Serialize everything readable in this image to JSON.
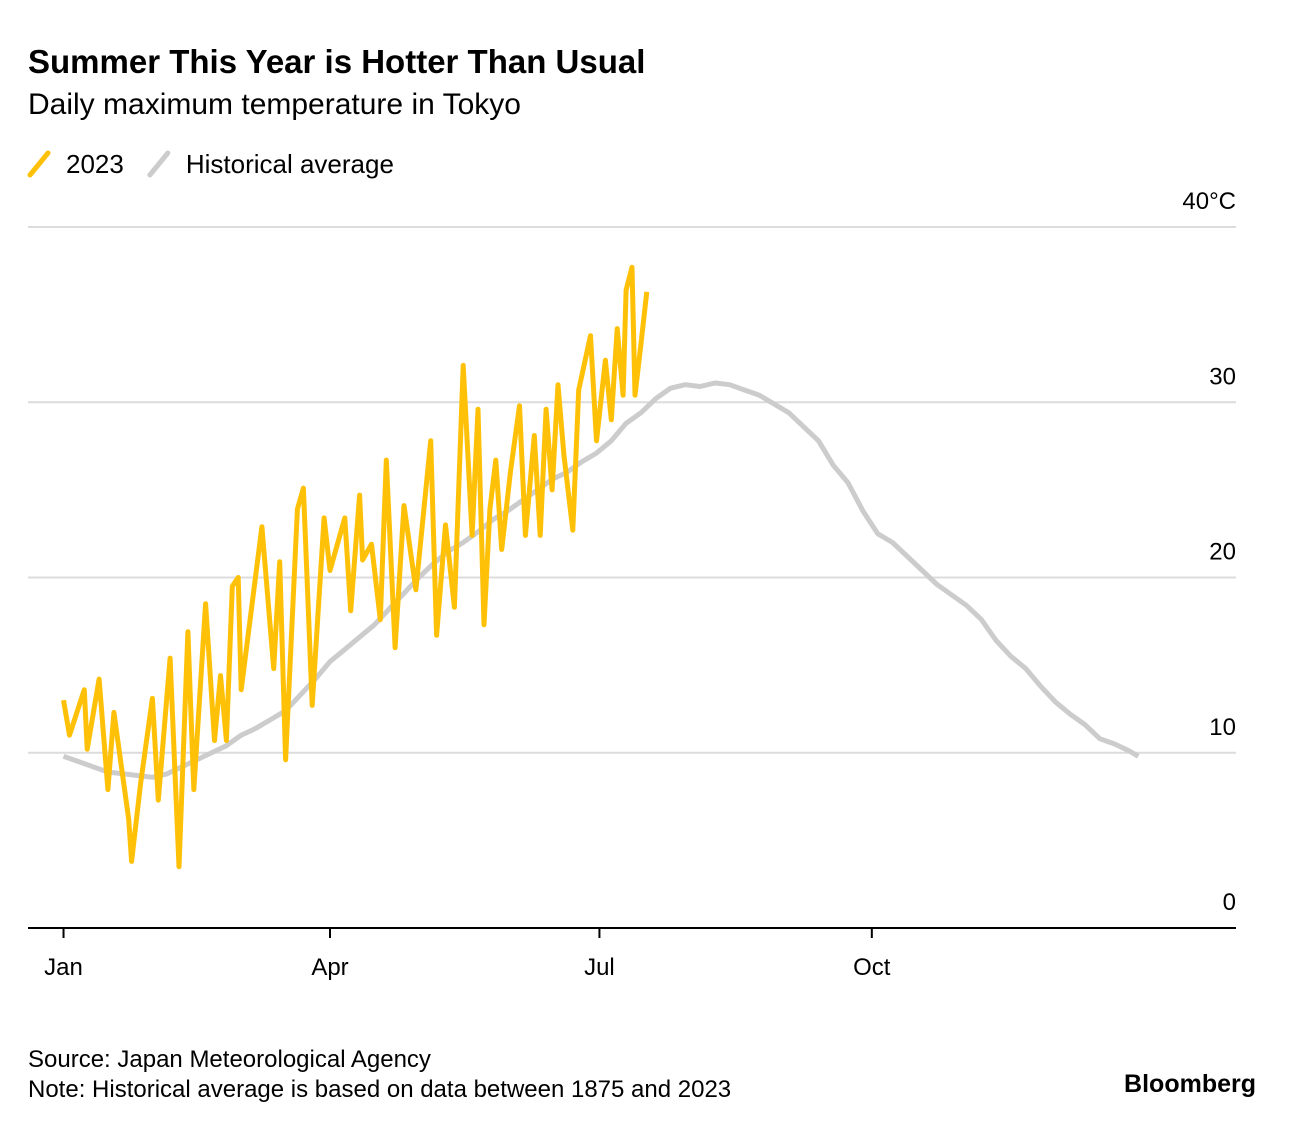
{
  "chart_data": {
    "type": "line",
    "title": "Summer This Year is Hotter Than Usual",
    "subtitle": "Daily maximum temperature in Tokyo",
    "source": "Source: Japan Meteorological Agency",
    "note": "Note: Historical average is based on data between 1875 and 2023",
    "brand": "Bloomberg",
    "xlim": [
      -11,
      397
    ],
    "xticks": [
      {
        "value": 1,
        "label": "Jan"
      },
      {
        "value": 91,
        "label": "Apr"
      },
      {
        "value": 182,
        "label": "Jul"
      },
      {
        "value": 274,
        "label": "Oct"
      }
    ],
    "ylim": [
      0,
      40
    ],
    "yticks": [
      0,
      10,
      20,
      30,
      {
        "value": 40,
        "label": "40°C"
      }
    ],
    "grid": true,
    "legend": "top-left",
    "series": [
      {
        "name": "2023",
        "color": "#ffc107",
        "x": [
          1,
          3,
          8,
          9,
          13,
          16,
          18,
          23,
          24,
          27,
          31,
          33,
          37,
          40,
          43,
          45,
          49,
          52,
          54,
          56,
          58,
          60,
          61,
          68,
          72,
          74,
          76,
          80,
          82,
          85,
          89,
          91,
          96,
          98,
          101,
          102,
          105,
          108,
          110,
          113,
          116,
          120,
          125,
          127,
          130,
          133,
          136,
          139,
          141,
          143,
          145,
          147,
          149,
          152,
          155,
          157,
          160,
          162,
          164,
          166,
          168,
          170,
          173,
          175,
          179,
          181,
          184,
          186,
          188,
          190,
          191,
          193,
          194,
          196,
          198
        ],
        "values": [
          13.0,
          11.0,
          13.6,
          10.2,
          14.2,
          7.9,
          12.3,
          6.2,
          3.8,
          8.2,
          13.1,
          7.3,
          15.4,
          3.5,
          16.9,
          7.9,
          18.5,
          10.7,
          14.4,
          10.7,
          19.5,
          20.0,
          13.6,
          22.9,
          14.8,
          20.9,
          9.6,
          23.9,
          25.1,
          12.7,
          23.4,
          20.4,
          23.4,
          18.1,
          24.7,
          21.0,
          21.9,
          17.6,
          26.7,
          16.0,
          24.1,
          19.3,
          27.8,
          16.7,
          23.0,
          18.3,
          32.1,
          22.4,
          29.6,
          17.3,
          23.9,
          26.7,
          21.6,
          26.1,
          29.8,
          22.4,
          28.1,
          22.4,
          29.6,
          25.0,
          31.0,
          27.0,
          22.7,
          30.7,
          33.8,
          27.8,
          32.4,
          29.0,
          34.2,
          30.4,
          36.4,
          37.7,
          30.4,
          33.3,
          36.3
        ]
      },
      {
        "name": "Historical average",
        "color": "#cccccc",
        "x": [
          1,
          6,
          11,
          16,
          21,
          26,
          31,
          36,
          41,
          46,
          51,
          56,
          61,
          66,
          71,
          76,
          81,
          86,
          91,
          96,
          101,
          106,
          111,
          116,
          121,
          126,
          131,
          136,
          141,
          146,
          151,
          156,
          161,
          166,
          171,
          176,
          181,
          186,
          191,
          196,
          201,
          206,
          211,
          216,
          221,
          226,
          231,
          236,
          241,
          246,
          251,
          256,
          261,
          266,
          271,
          276,
          281,
          286,
          291,
          296,
          301,
          306,
          311,
          316,
          321,
          326,
          331,
          336,
          341,
          346,
          351,
          356,
          361,
          364
        ],
        "values": [
          9.8,
          9.5,
          9.2,
          8.9,
          8.8,
          8.7,
          8.6,
          8.8,
          9.2,
          9.6,
          10.0,
          10.4,
          11.0,
          11.4,
          11.9,
          12.4,
          13.3,
          14.2,
          15.2,
          15.9,
          16.6,
          17.3,
          18.2,
          19.1,
          20.0,
          20.8,
          21.5,
          22.0,
          22.6,
          23.3,
          23.8,
          24.4,
          25.0,
          25.6,
          26.0,
          26.6,
          27.1,
          27.8,
          28.8,
          29.4,
          30.2,
          30.8,
          31.0,
          30.9,
          31.1,
          31.0,
          30.7,
          30.4,
          29.9,
          29.4,
          28.6,
          27.8,
          26.4,
          25.4,
          23.8,
          22.5,
          22.0,
          21.2,
          20.4,
          19.6,
          19.0,
          18.4,
          17.6,
          16.4,
          15.5,
          14.8,
          13.8,
          12.9,
          12.2,
          11.6,
          10.8,
          10.5,
          10.1,
          9.8
        ]
      }
    ]
  }
}
